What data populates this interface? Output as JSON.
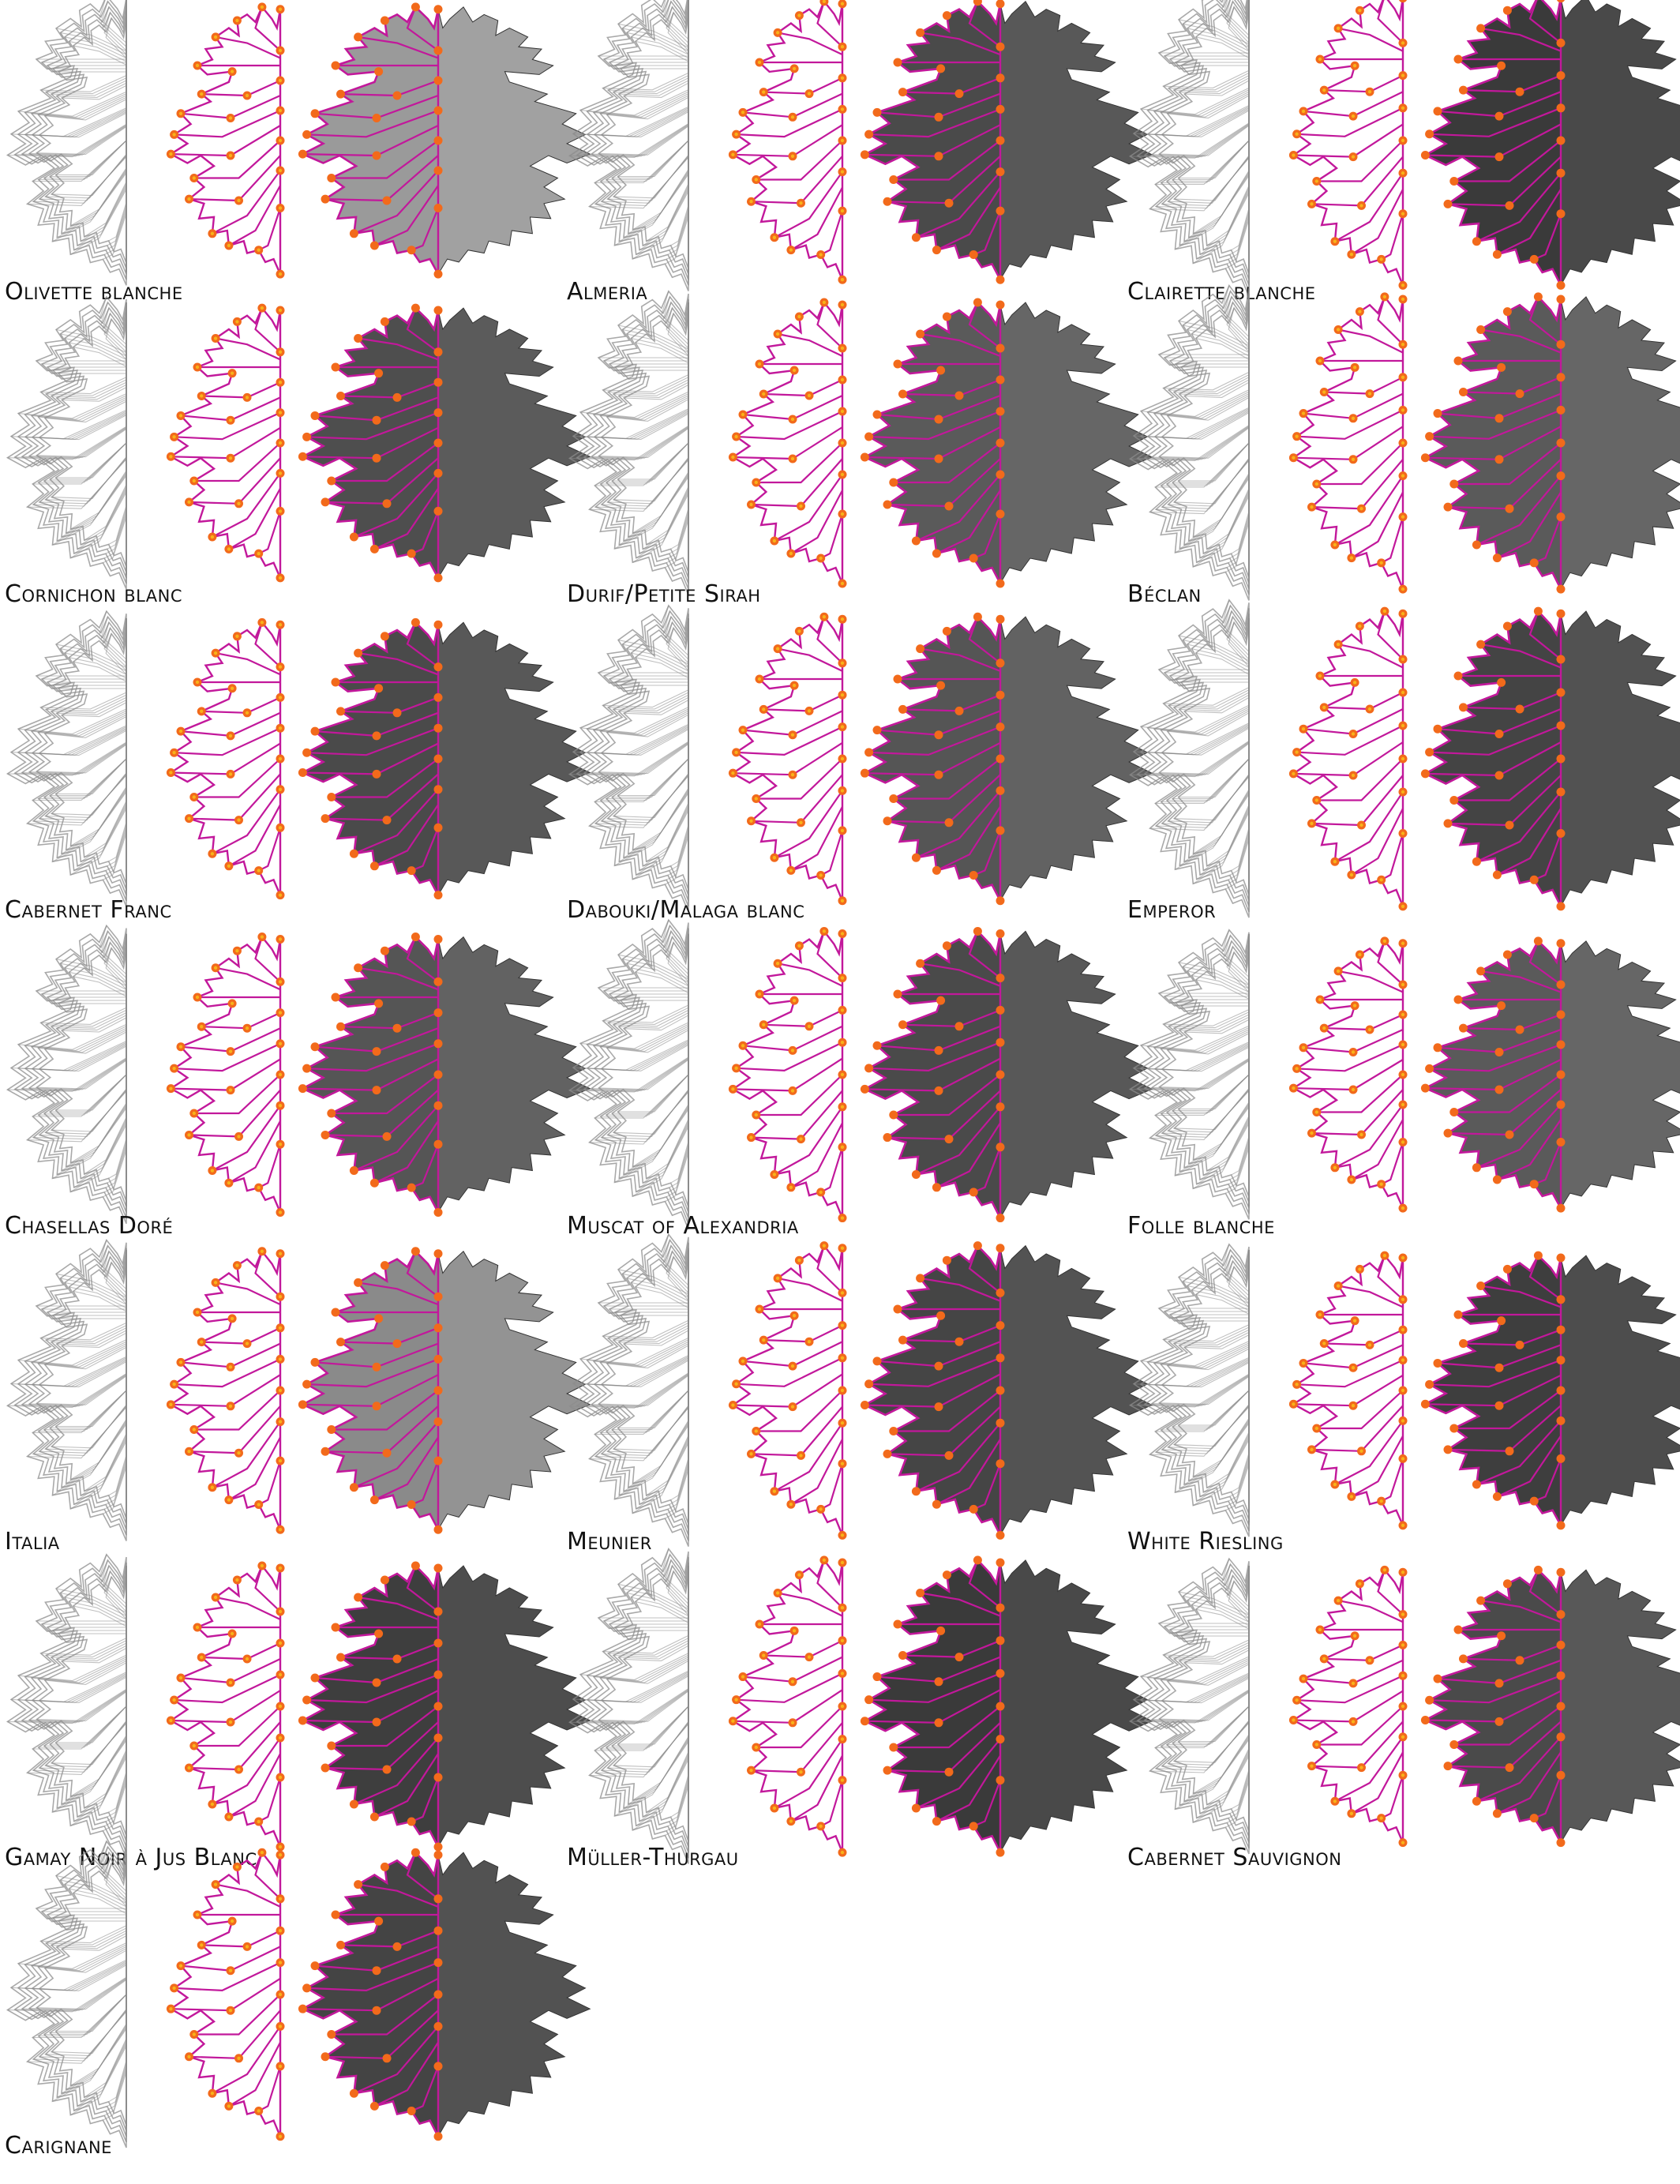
{
  "figure": {
    "colors": {
      "outline": "#8c8c8c",
      "landmark_line": "#c2189b",
      "landmark_dot": "#f26a1b",
      "landmark_dot_core": "#f7b21a"
    },
    "panels": [
      {
        "label": "Olivette blanche",
        "shade": "#9a9a9a"
      },
      {
        "label": "Almeria",
        "shade": "#4a4a4a"
      },
      {
        "label": "Clairette blanche",
        "shade": "#3a3a3a"
      },
      {
        "label": "Cornichon blanc",
        "shade": "#4e4e4e"
      },
      {
        "label": "Durif/Petite Sirah",
        "shade": "#5a5a5a"
      },
      {
        "label": "Béclan",
        "shade": "#5a5a5a"
      },
      {
        "label": "Cabernet Franc",
        "shade": "#4a4a4a"
      },
      {
        "label": "Dabouki/Malaga blanc",
        "shade": "#555555"
      },
      {
        "label": "Emperor",
        "shade": "#444444"
      },
      {
        "label": "Chasellas Doré",
        "shade": "#555555"
      },
      {
        "label": "Muscat of Alexandria",
        "shade": "#4a4a4a"
      },
      {
        "label": "Folle blanche",
        "shade": "#5a5a5a"
      },
      {
        "label": "Italia",
        "shade": "#8a8a8a"
      },
      {
        "label": "Meunier",
        "shade": "#454545"
      },
      {
        "label": "White Riesling",
        "shade": "#3e3e3e"
      },
      {
        "label": "Gamay Noir à Jus Blanc",
        "shade": "#3e3e3e"
      },
      {
        "label": "Müller-Thurgau",
        "shade": "#3a3a3a"
      },
      {
        "label": "Cabernet Sauvignon",
        "shade": "#4a4a4a"
      },
      {
        "label": "Carignane",
        "shade": "#444444"
      }
    ]
  }
}
